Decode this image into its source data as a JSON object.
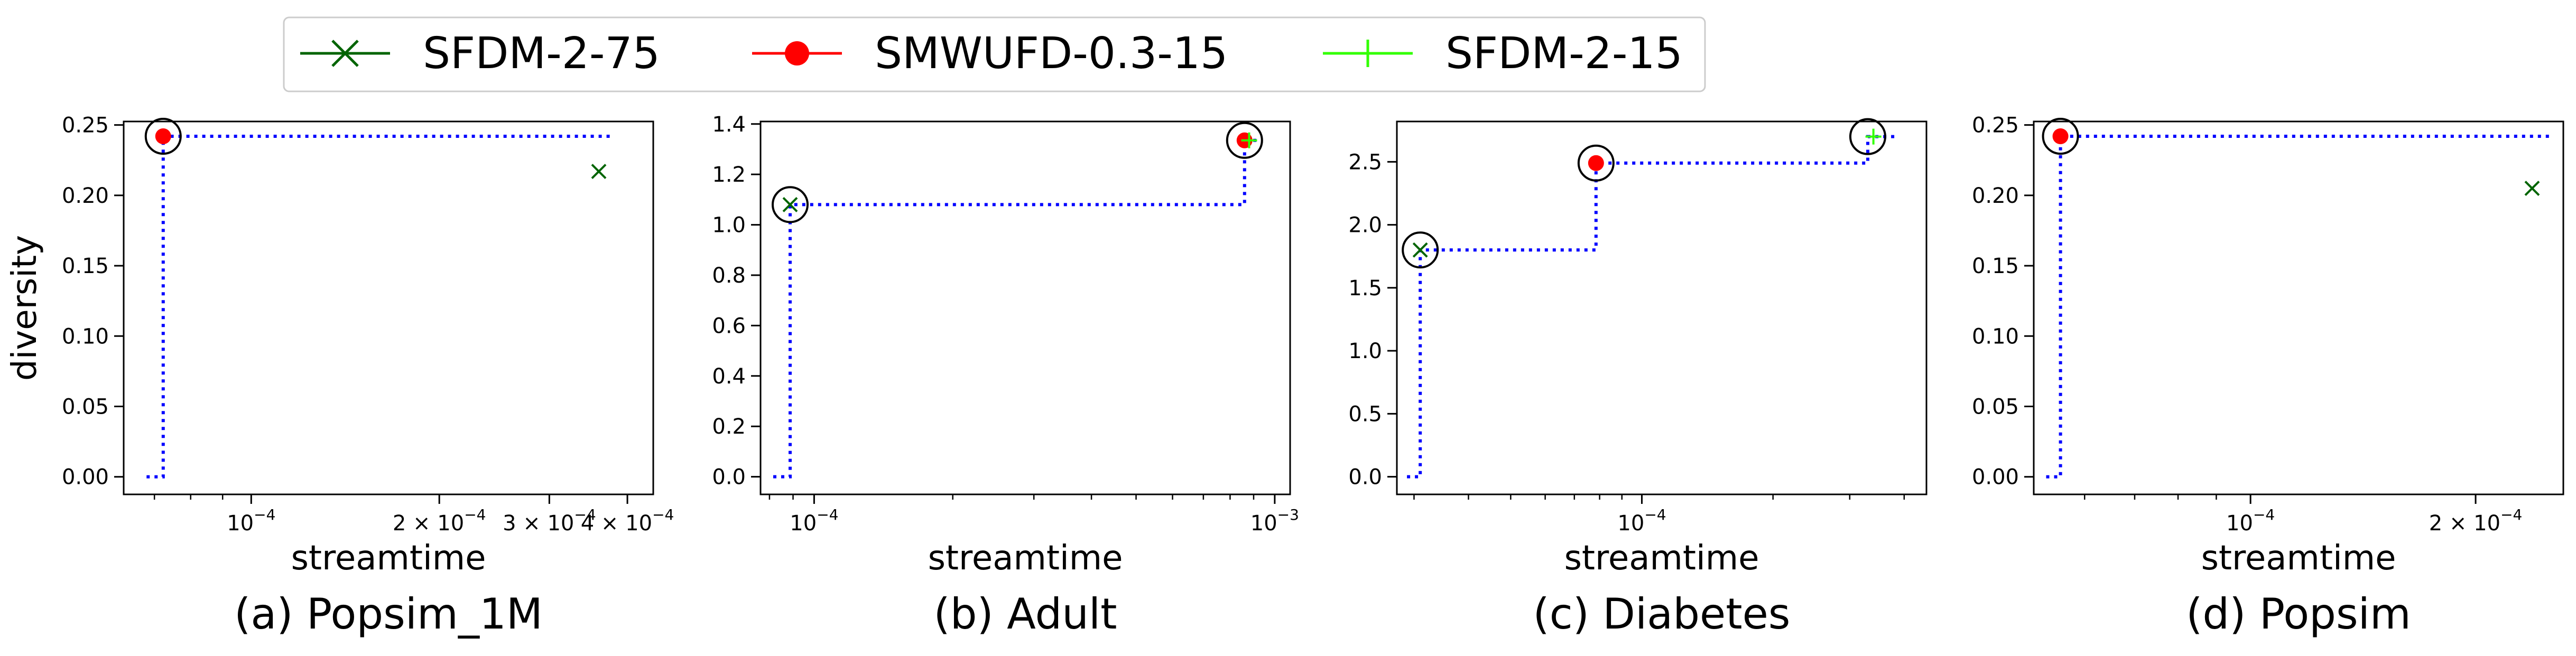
{
  "legend": {
    "entries": [
      {
        "label": "SFDM-2-75",
        "color": "#006400",
        "marker": "x-marker-icon"
      },
      {
        "label": "SMWUFD-0.3-15",
        "color": "#ff0000",
        "marker": "filled-circle-marker-icon"
      },
      {
        "label": "SFDM-2-15",
        "color": "#32ff00",
        "marker": "plus-marker-icon"
      }
    ]
  },
  "colors": {
    "frontier": "#0000ff",
    "highlight": "#000000"
  },
  "chart_data": [
    {
      "type": "scatter",
      "title": "(a) Popsim_1M",
      "xlabel": "streamtime",
      "ylabel": "diversity",
      "xscale": "log",
      "xlim": [
        6.25e-05,
        0.00044
      ],
      "ylim": [
        -0.0125,
        0.2525
      ],
      "xticks": [
        {
          "v": 0.0001,
          "label": "10"
        },
        {
          "v": 0.0002,
          "label": "2 × 10"
        },
        {
          "v": 0.0003,
          "label": "3 × 10"
        },
        {
          "v": 0.0004,
          "label": "4 × 10"
        }
      ],
      "yticks": [
        {
          "v": 0.0,
          "label": "0.00"
        },
        {
          "v": 0.05,
          "label": "0.05"
        },
        {
          "v": 0.1,
          "label": "0.10"
        },
        {
          "v": 0.15,
          "label": "0.15"
        },
        {
          "v": 0.2,
          "label": "0.20"
        },
        {
          "v": 0.25,
          "label": "0.25"
        }
      ],
      "series": [
        {
          "name": "SFDM-2-75",
          "x": [
            0.00036
          ],
          "y": [
            0.217
          ]
        },
        {
          "name": "SMWUFD-0.3-15",
          "x": [
            7.23e-05
          ],
          "y": [
            0.242
          ]
        }
      ],
      "frontier": [
        [
          6.8e-05,
          0.0
        ],
        [
          7.23e-05,
          0.0
        ],
        [
          7.23e-05,
          0.242
        ],
        [
          0.00038,
          0.242
        ]
      ],
      "highlighted": [
        [
          7.23e-05,
          0.242
        ]
      ]
    },
    {
      "type": "scatter",
      "title": "(b) Adult",
      "xlabel": "streamtime",
      "xscale": "log",
      "xlim": [
        7.65e-05,
        0.00108
      ],
      "ylim": [
        -0.07,
        1.41
      ],
      "xticks": [
        {
          "v": 0.0001,
          "label": "10"
        },
        {
          "v": 0.001,
          "label": "10"
        }
      ],
      "yticks": [
        {
          "v": 0.0,
          "label": "0.0"
        },
        {
          "v": 0.2,
          "label": "0.2"
        },
        {
          "v": 0.4,
          "label": "0.4"
        },
        {
          "v": 0.6,
          "label": "0.6"
        },
        {
          "v": 0.8,
          "label": "0.8"
        },
        {
          "v": 1.0,
          "label": "1.0"
        },
        {
          "v": 1.2,
          "label": "1.2"
        },
        {
          "v": 1.4,
          "label": "1.4"
        }
      ],
      "series": [
        {
          "name": "SFDM-2-75",
          "x": [
            8.87e-05
          ],
          "y": [
            1.08
          ]
        },
        {
          "name": "SMWUFD-0.3-15",
          "x": [
            0.00086
          ],
          "y": [
            1.335
          ]
        },
        {
          "name": "SFDM-2-15",
          "x": [
            0.00088
          ],
          "y": [
            1.335
          ]
        }
      ],
      "frontier": [
        [
          8.15e-05,
          0.0
        ],
        [
          8.87e-05,
          0.0
        ],
        [
          8.87e-05,
          1.08
        ],
        [
          0.00086,
          1.08
        ],
        [
          0.00086,
          1.335
        ],
        [
          0.00094,
          1.335
        ]
      ],
      "highlighted": [
        [
          8.87e-05,
          1.08
        ],
        [
          0.00086,
          1.335
        ]
      ]
    },
    {
      "type": "scatter",
      "title": "(c) Diabetes",
      "xlabel": "streamtime",
      "xscale": "log",
      "xlim": [
        2.74e-05,
        0.00045
      ],
      "ylim": [
        -0.14,
        2.82
      ],
      "xticks": [
        {
          "v": 0.0001,
          "label": "10"
        }
      ],
      "yticks": [
        {
          "v": 0.0,
          "label": "0.0"
        },
        {
          "v": 0.5,
          "label": "0.5"
        },
        {
          "v": 1.0,
          "label": "1.0"
        },
        {
          "v": 1.5,
          "label": "1.5"
        },
        {
          "v": 2.0,
          "label": "2.0"
        },
        {
          "v": 2.5,
          "label": "2.5"
        }
      ],
      "series": [
        {
          "name": "SFDM-2-75",
          "x": [
            3.1e-05
          ],
          "y": [
            1.8
          ]
        },
        {
          "name": "SMWUFD-0.3-15",
          "x": [
            7.85e-05
          ],
          "y": [
            2.49
          ]
        },
        {
          "name": "SFDM-2-15",
          "x": [
            0.00034
          ],
          "y": [
            2.7
          ]
        }
      ],
      "frontier": [
        [
          2.89e-05,
          0.0
        ],
        [
          3.1e-05,
          0.0
        ],
        [
          3.1e-05,
          1.8
        ],
        [
          7.85e-05,
          1.8
        ],
        [
          7.85e-05,
          2.49
        ],
        [
          0.00033,
          2.49
        ],
        [
          0.00033,
          2.7
        ],
        [
          0.00038,
          2.7
        ]
      ],
      "highlighted": [
        [
          3.1e-05,
          1.8
        ],
        [
          7.85e-05,
          2.49
        ],
        [
          0.00033,
          2.7
        ]
      ]
    },
    {
      "type": "scatter",
      "title": "(d) Popsim",
      "xlabel": "streamtime",
      "xscale": "log",
      "xlim": [
        5.13e-05,
        0.000262
      ],
      "ylim": [
        -0.0125,
        0.2525
      ],
      "xticks": [
        {
          "v": 0.0001,
          "label": "10"
        },
        {
          "v": 0.0002,
          "label": "2 × 10"
        }
      ],
      "yticks": [
        {
          "v": 0.0,
          "label": "0.00"
        },
        {
          "v": 0.05,
          "label": "0.05"
        },
        {
          "v": 0.1,
          "label": "0.10"
        },
        {
          "v": 0.15,
          "label": "0.15"
        },
        {
          "v": 0.2,
          "label": "0.20"
        },
        {
          "v": 0.25,
          "label": "0.25"
        }
      ],
      "series": [
        {
          "name": "SFDM-2-75",
          "x": [
            0.000238
          ],
          "y": [
            0.205
          ]
        },
        {
          "name": "SMWUFD-0.3-15",
          "x": [
            5.57e-05
          ],
          "y": [
            0.242
          ]
        }
      ],
      "frontier": [
        [
          5.33e-05,
          0.0
        ],
        [
          5.57e-05,
          0.0
        ],
        [
          5.57e-05,
          0.242
        ],
        [
          0.000251,
          0.242
        ]
      ],
      "highlighted": [
        [
          5.57e-05,
          0.242
        ]
      ]
    }
  ]
}
